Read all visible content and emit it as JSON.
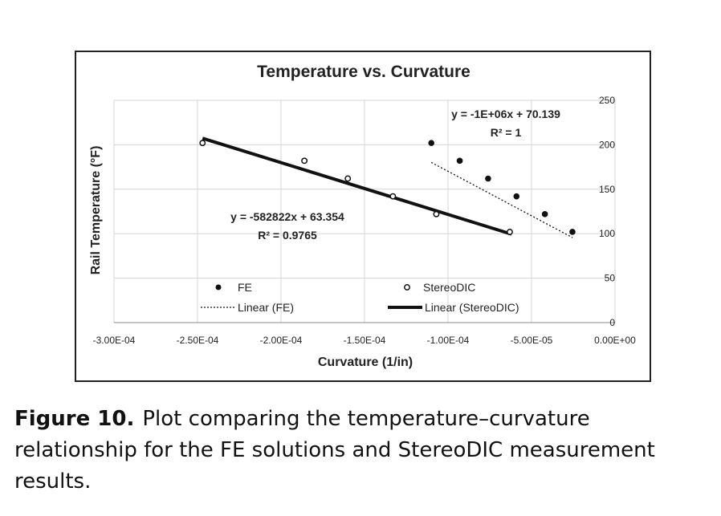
{
  "chart_data": {
    "type": "scatter",
    "title": "Temperature vs. Curvature",
    "xlabel": "Curvature (1/in)",
    "ylabel": "Rail Temperature (°F)",
    "xlim": [
      -0.0003,
      0
    ],
    "ylim": [
      0,
      250
    ],
    "x_ticks": [
      -0.0003,
      -0.00025,
      -0.0002,
      -0.00015,
      -0.0001,
      -5e-05,
      0
    ],
    "x_tick_labels": [
      "-3.00E-04",
      "-2.50E-04",
      "-2.00E-04",
      "-1.50E-04",
      "-1.00E-04",
      "-5.00E-05",
      "0.00E+00"
    ],
    "y_ticks": [
      0,
      50,
      100,
      150,
      200,
      250
    ],
    "y_tick_labels": [
      "0",
      "50",
      "100",
      "150",
      "200",
      "250"
    ],
    "y_axis_side": "right",
    "grid": true,
    "series": [
      {
        "name": "FE",
        "marker": "filled-circle",
        "x": [
          -0.00011,
          -9.3e-05,
          -7.6e-05,
          -5.9e-05,
          -4.2e-05,
          -2.55e-05
        ],
        "y": [
          202,
          182,
          162,
          142,
          122,
          102
        ]
      },
      {
        "name": "StereoDIC",
        "marker": "open-circle",
        "x": [
          -0.000247,
          -0.000186,
          -0.00016,
          -0.000133,
          -0.000107,
          -6.3e-05
        ],
        "y": [
          202,
          182,
          162,
          142,
          122,
          102
        ]
      }
    ],
    "trendlines": [
      {
        "name": "Linear (FE)",
        "style": "dotted",
        "x_range": [
          -0.00011,
          -2.55e-05
        ],
        "slope": -1000000,
        "intercept": 70.139,
        "equation": "y = -1E+06x + 70.139",
        "r2": "R² = 1"
      },
      {
        "name": "Linear (StereoDIC)",
        "style": "thick-solid",
        "x_range": [
          -0.000247,
          -6.2e-05
        ],
        "slope": -582822,
        "intercept": 63.354,
        "equation": "y = -582822x + 63.354",
        "r2": "R² = 0.9765"
      }
    ],
    "legend": {
      "placement": "bottom-inside",
      "entries": [
        {
          "label": "FE",
          "symbol": "filled-circle"
        },
        {
          "label": "StereoDIC",
          "symbol": "open-circle"
        },
        {
          "label": "Linear (FE)",
          "symbol": "dotted-line"
        },
        {
          "label": "Linear (StereoDIC)",
          "symbol": "thick-line"
        }
      ]
    }
  },
  "caption": {
    "label": "Figure 10.",
    "text": "Plot comparing the temperature–curvature relationship for the FE solutions and StereoDIC measurement results."
  }
}
